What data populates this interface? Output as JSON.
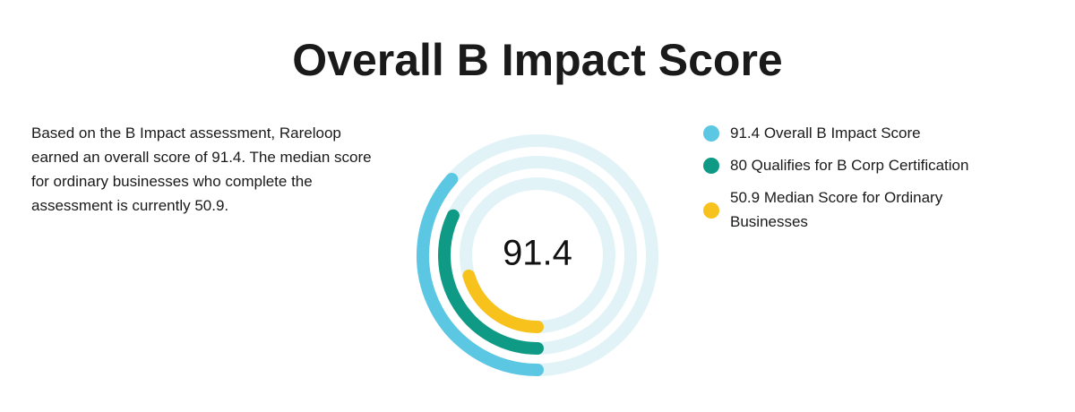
{
  "chart_data": {
    "type": "radial-bar",
    "title": "Overall B Impact Score",
    "description": "Based on the B Impact assessment, Rareloop earned an overall score of 91.4. The median score for ordinary businesses who complete the assessment is currently 50.9.",
    "ylim": [
      0,
      250
    ],
    "track_color": "#e2f3f8",
    "series": [
      {
        "name": "Overall B Impact Score",
        "color": "#5bc7e2",
        "values": [
          91.4
        ]
      },
      {
        "name": "Qualifies for B Corp Certification",
        "color": "#0e9a84",
        "values": [
          80
        ]
      },
      {
        "name": "Median Score for Ordinary Businesses",
        "color": "#f8c21d",
        "values": [
          50.9
        ]
      }
    ]
  }
}
